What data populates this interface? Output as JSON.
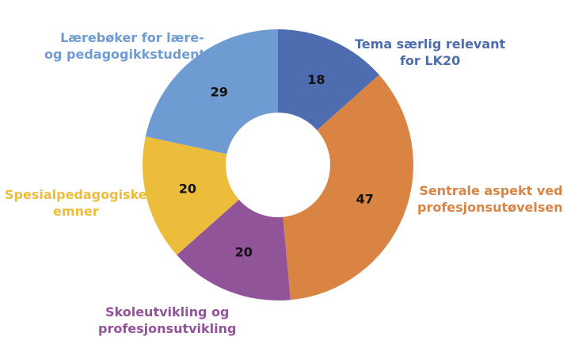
{
  "chart_data": {
    "type": "pie",
    "donut": true,
    "title": "",
    "categories": [
      "Tema særlig relevant for LK20",
      "Sentrale aspekt ved profesjonsutøvelsen",
      "Skoleutvikling og profesjonsutvikling",
      "Spesialpedagogiske emner",
      "Lærebøker for lære- og pedagogikkstudenter"
    ],
    "values": [
      18,
      47,
      20,
      20,
      29
    ],
    "colors": [
      "#4e6db0",
      "#d98442",
      "#925499",
      "#ecbd3b",
      "#6f9bd3"
    ],
    "label_lines": [
      [
        "Tema særlig relevant",
        "for LK20"
      ],
      [
        "Sentrale aspekt ved",
        "profesjonsutøvelsen"
      ],
      [
        "Skoleutvikling og",
        "profesjonsutvikling"
      ],
      [
        "Spesialpedagogiske",
        "emner"
      ],
      [
        "Lærebøker for lære-",
        "og pedagogikkstudenter"
      ]
    ]
  }
}
